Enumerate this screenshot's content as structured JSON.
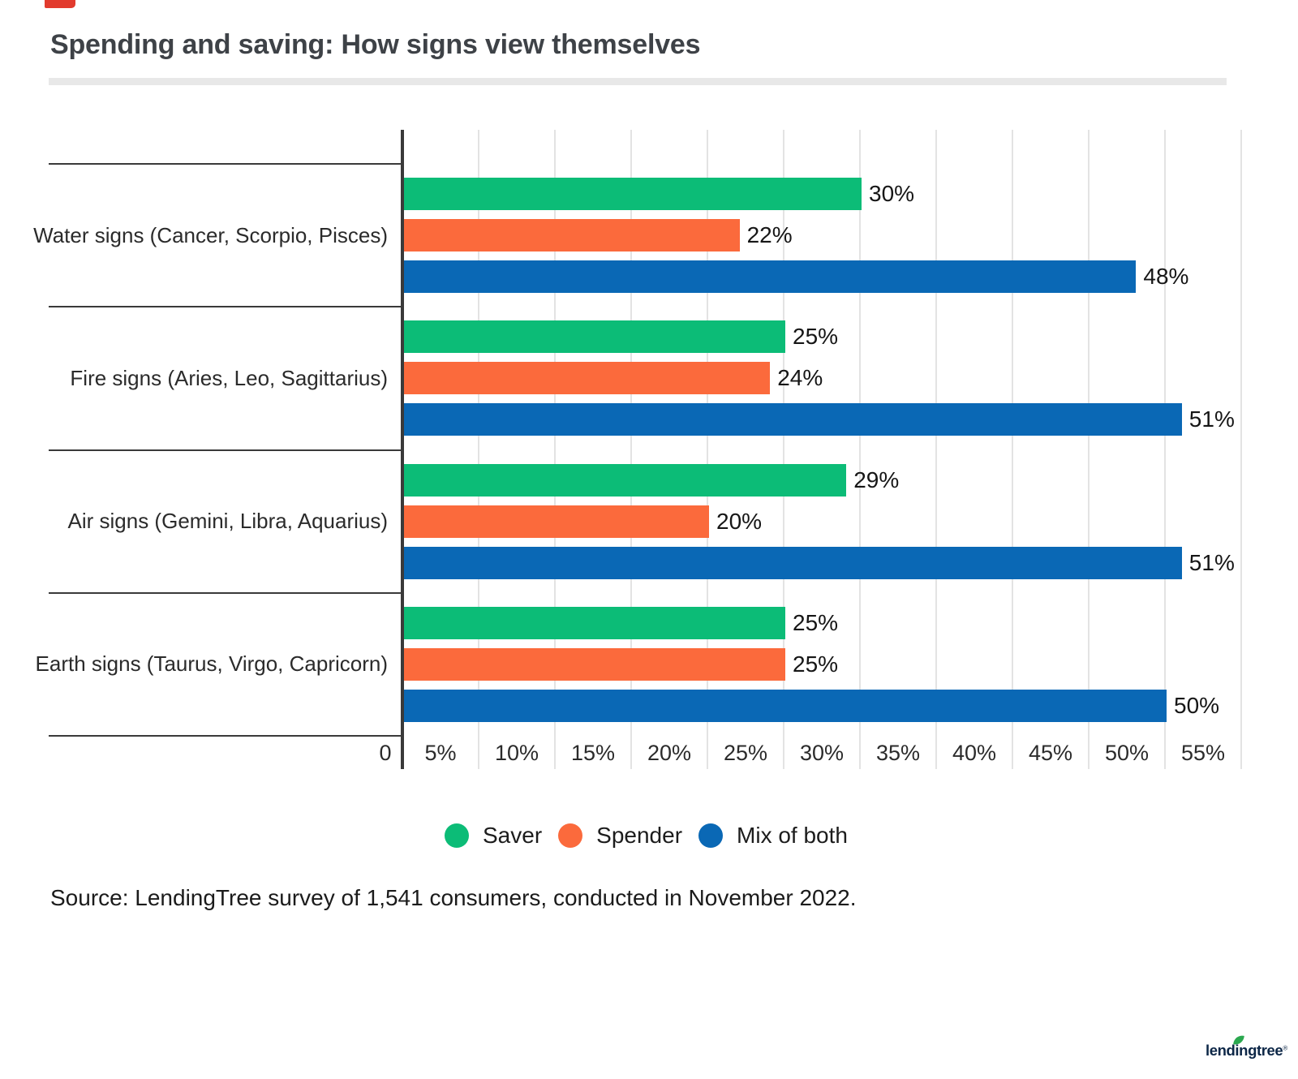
{
  "title": "Spending and saving: How signs view themselves",
  "chart_data": {
    "type": "bar",
    "orientation": "horizontal",
    "title": "Spending and saving: How signs view themselves",
    "categories": [
      "Water signs (Cancer, Scorpio, Pisces)",
      "Fire signs (Aries, Leo, Sagittarius)",
      "Air signs (Gemini, Libra, Aquarius)",
      "Earth signs (Taurus, Virgo, Capricorn)"
    ],
    "series": [
      {
        "name": "Saver",
        "color": "#0cbc77",
        "values": [
          30,
          25,
          29,
          25
        ]
      },
      {
        "name": "Spender",
        "color": "#fb6a3c",
        "values": [
          22,
          24,
          20,
          25
        ]
      },
      {
        "name": "Mix of both",
        "color": "#0a68b5",
        "values": [
          48,
          51,
          51,
          50
        ]
      }
    ],
    "value_suffix": "%",
    "xlabel": "",
    "ylabel": "",
    "xlim": [
      0,
      55
    ],
    "xticks": [
      "0",
      "5%",
      "10%",
      "15%",
      "20%",
      "25%",
      "30%",
      "35%",
      "40%",
      "45%",
      "50%",
      "55%"
    ],
    "grid": true,
    "legend_position": "bottom"
  },
  "source": "Source: LendingTree survey of 1,541 consumers, conducted in November 2022.",
  "logo": {
    "text": "lendingtree",
    "reg": "®"
  }
}
